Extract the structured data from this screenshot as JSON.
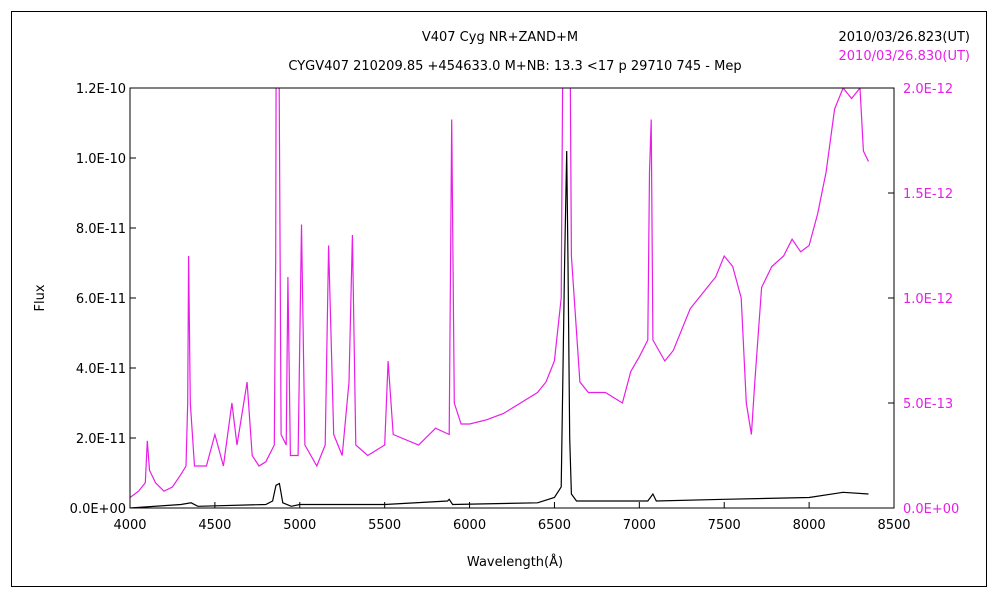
{
  "chart_data": {
    "type": "line",
    "title": "V407 Cyg    NR+ZAND+M",
    "subtitle": "CYGV407 210209.85 +454633.0 M+NB: 13.3 <17 p 29710 745 - Mep",
    "xlabel": "Wavelength(Å)",
    "ylabel": "Flux",
    "xlim": [
      4000,
      8500
    ],
    "ylim_left": [
      0,
      1.2e-10
    ],
    "ylim_right": [
      0,
      2e-12
    ],
    "x_ticks": [
      "4000",
      "4500",
      "5000",
      "5500",
      "6000",
      "6500",
      "7000",
      "7500",
      "8000",
      "8500"
    ],
    "x_tick_values": [
      4000,
      4500,
      5000,
      5500,
      6000,
      6500,
      7000,
      7500,
      8000,
      8500
    ],
    "y_left_ticks": [
      "0.0E+00",
      "2.0E-11",
      "4.0E-11",
      "6.0E-11",
      "8.0E-11",
      "1.0E-10",
      "1.2E-10"
    ],
    "y_left_tick_values": [
      0,
      2e-11,
      4e-11,
      6e-11,
      8e-11,
      1e-10,
      1.2e-10
    ],
    "y_right_ticks": [
      "0.0E+00",
      "5.0E-13",
      "1.0E-12",
      "1.5E-12",
      "2.0E-12"
    ],
    "y_right_tick_values": [
      0,
      5e-13,
      1e-12,
      1.5e-12,
      2e-12
    ],
    "grid": false,
    "legend_position": "top-right",
    "series": [
      {
        "name": "2010/03/26.823(UT)",
        "color": "#000000",
        "axis": "left",
        "points": [
          [
            4000,
            0
          ],
          [
            4300,
            1e-12
          ],
          [
            4360,
            1.5e-12
          ],
          [
            4400,
            5e-13
          ],
          [
            4800,
            1e-12
          ],
          [
            4840,
            2e-12
          ],
          [
            4860,
            6.5e-12
          ],
          [
            4880,
            7e-12
          ],
          [
            4900,
            1.5e-12
          ],
          [
            4950,
            5e-13
          ],
          [
            5000,
            1e-12
          ],
          [
            5500,
            1e-12
          ],
          [
            5870,
            2e-12
          ],
          [
            5880,
            2.5e-12
          ],
          [
            5900,
            1e-12
          ],
          [
            6400,
            1.5e-12
          ],
          [
            6500,
            3e-12
          ],
          [
            6540,
            6e-12
          ],
          [
            6560,
            7e-11
          ],
          [
            6572,
            1.02e-10
          ],
          [
            6580,
            7e-11
          ],
          [
            6590,
            2e-11
          ],
          [
            6600,
            4e-12
          ],
          [
            6630,
            2e-12
          ],
          [
            7050,
            2e-12
          ],
          [
            7080,
            4e-12
          ],
          [
            7100,
            2e-12
          ],
          [
            7500,
            2.5e-12
          ],
          [
            8000,
            3e-12
          ],
          [
            8200,
            4.5e-12
          ],
          [
            8350,
            4e-12
          ]
        ]
      },
      {
        "name": "2010/03/26.830(UT)",
        "color": "#e81ee8",
        "axis": "right",
        "points": [
          [
            4000,
            5e-14
          ],
          [
            4050,
            8e-14
          ],
          [
            4090,
            1.2e-13
          ],
          [
            4102,
            3.2e-13
          ],
          [
            4115,
            1.8e-13
          ],
          [
            4150,
            1.2e-13
          ],
          [
            4200,
            8e-14
          ],
          [
            4250,
            1e-13
          ],
          [
            4300,
            1.6e-13
          ],
          [
            4330,
            2e-13
          ],
          [
            4340,
            5e-13
          ],
          [
            4345,
            1.2e-12
          ],
          [
            4355,
            5e-13
          ],
          [
            4380,
            2e-13
          ],
          [
            4450,
            2e-13
          ],
          [
            4500,
            3.5e-13
          ],
          [
            4550,
            2e-13
          ],
          [
            4600,
            5e-13
          ],
          [
            4630,
            3e-13
          ],
          [
            4690,
            6e-13
          ],
          [
            4720,
            2.5e-13
          ],
          [
            4760,
            2e-13
          ],
          [
            4800,
            2.2e-13
          ],
          [
            4850,
            3e-13
          ],
          [
            4858,
            1.2e-12
          ],
          [
            4862,
            2.5e-12
          ],
          [
            4875,
            2.5e-12
          ],
          [
            4890,
            3.5e-13
          ],
          [
            4920,
            3e-13
          ],
          [
            4930,
            1.1e-12
          ],
          [
            4945,
            2.5e-13
          ],
          [
            4990,
            2.5e-13
          ],
          [
            5010,
            1.35e-12
          ],
          [
            5030,
            3e-13
          ],
          [
            5100,
            2e-13
          ],
          [
            5150,
            3e-13
          ],
          [
            5170,
            1.25e-12
          ],
          [
            5200,
            3.5e-13
          ],
          [
            5250,
            2.5e-13
          ],
          [
            5290,
            6e-13
          ],
          [
            5310,
            1.3e-12
          ],
          [
            5330,
            3e-13
          ],
          [
            5400,
            2.5e-13
          ],
          [
            5500,
            3e-13
          ],
          [
            5520,
            7e-13
          ],
          [
            5550,
            3.5e-13
          ],
          [
            5700,
            3e-13
          ],
          [
            5800,
            3.8e-13
          ],
          [
            5880,
            3.5e-13
          ],
          [
            5895,
            1.85e-12
          ],
          [
            5910,
            5e-13
          ],
          [
            5950,
            4e-13
          ],
          [
            6000,
            4e-13
          ],
          [
            6100,
            4.2e-13
          ],
          [
            6200,
            4.5e-13
          ],
          [
            6300,
            5e-13
          ],
          [
            6400,
            5.5e-13
          ],
          [
            6450,
            6e-13
          ],
          [
            6500,
            7e-13
          ],
          [
            6540,
            1e-12
          ],
          [
            6552,
            2.5e-12
          ],
          [
            6590,
            2.5e-12
          ],
          [
            6600,
            1.2e-12
          ],
          [
            6650,
            6e-13
          ],
          [
            6700,
            5.5e-13
          ],
          [
            6800,
            5.5e-13
          ],
          [
            6900,
            5e-13
          ],
          [
            6950,
            6.5e-13
          ],
          [
            7000,
            7.2e-13
          ],
          [
            7050,
            8e-13
          ],
          [
            7060,
            1.6e-12
          ],
          [
            7070,
            1.85e-12
          ],
          [
            7080,
            8e-13
          ],
          [
            7150,
            7e-13
          ],
          [
            7200,
            7.5e-13
          ],
          [
            7300,
            9.5e-13
          ],
          [
            7350,
            1e-12
          ],
          [
            7400,
            1.05e-12
          ],
          [
            7450,
            1.1e-12
          ],
          [
            7500,
            1.2e-12
          ],
          [
            7550,
            1.15e-12
          ],
          [
            7600,
            1e-12
          ],
          [
            7630,
            5e-13
          ],
          [
            7660,
            3.5e-13
          ],
          [
            7680,
            6e-13
          ],
          [
            7720,
            1.05e-12
          ],
          [
            7780,
            1.15e-12
          ],
          [
            7850,
            1.2e-12
          ],
          [
            7900,
            1.28e-12
          ],
          [
            7950,
            1.22e-12
          ],
          [
            8000,
            1.25e-12
          ],
          [
            8050,
            1.4e-12
          ],
          [
            8100,
            1.6e-12
          ],
          [
            8150,
            1.9e-12
          ],
          [
            8200,
            2e-12
          ],
          [
            8250,
            1.95e-12
          ],
          [
            8300,
            2e-12
          ],
          [
            8320,
            1.7e-12
          ],
          [
            8350,
            1.65e-12
          ]
        ]
      }
    ]
  }
}
